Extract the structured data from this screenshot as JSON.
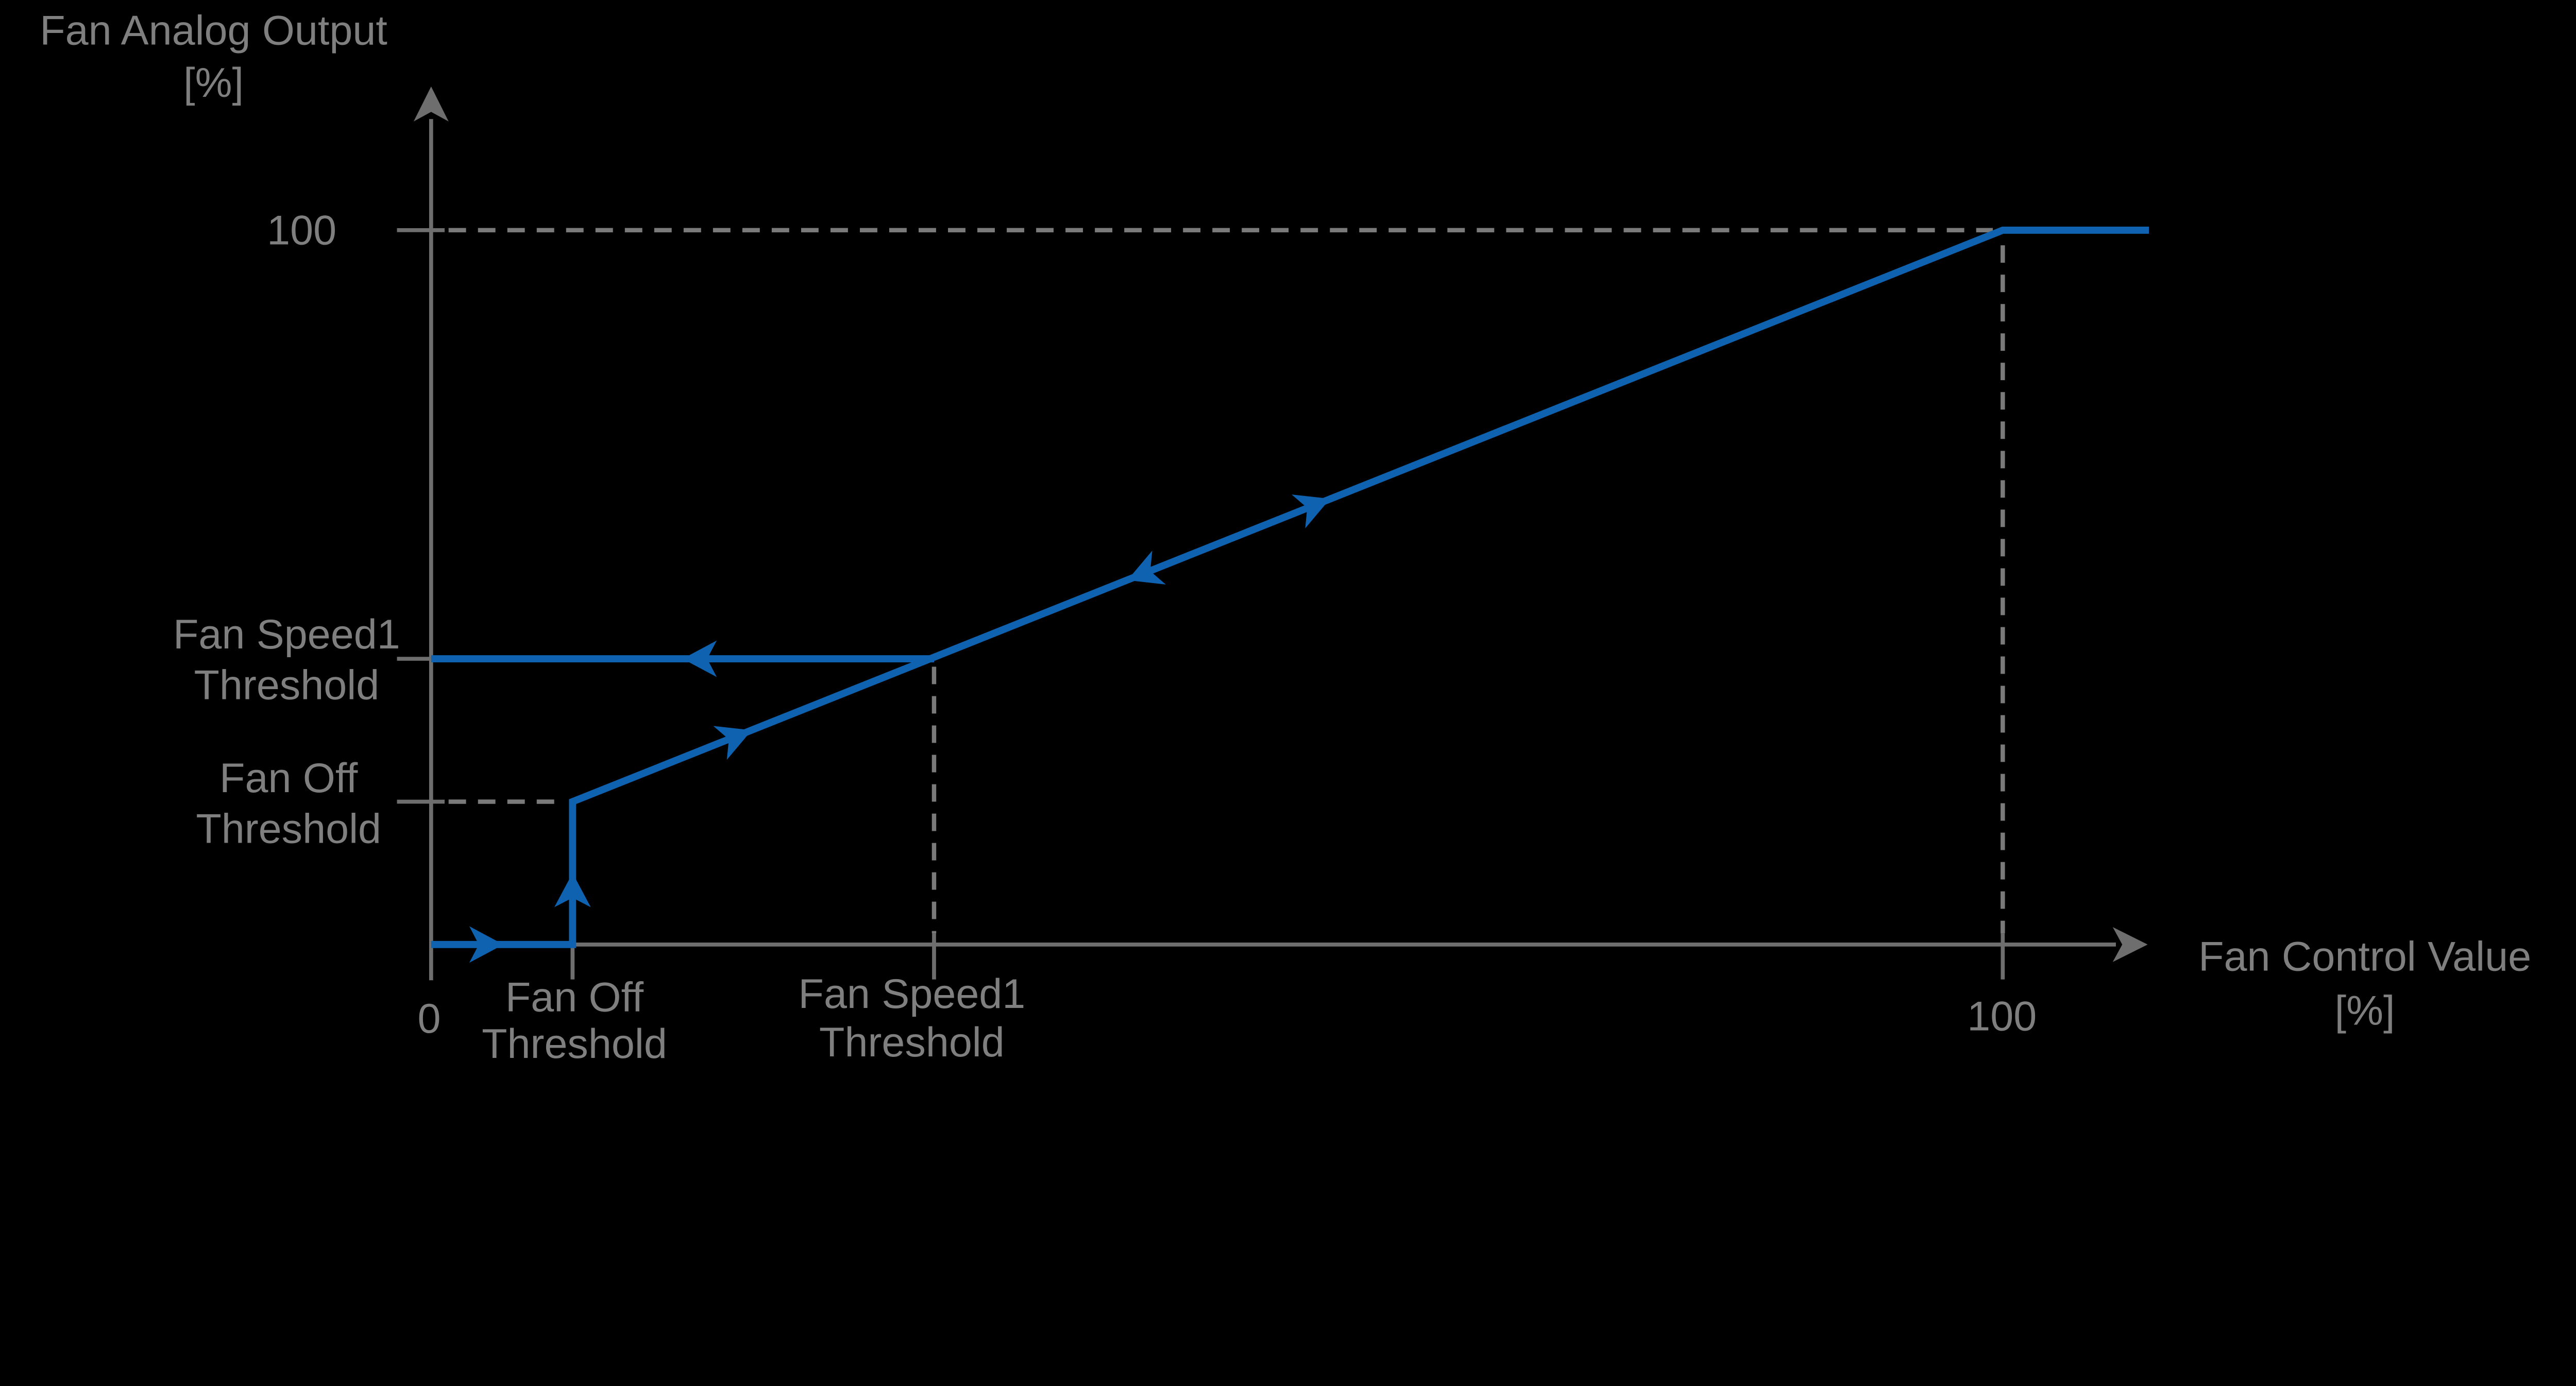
{
  "page": {
    "background_color": "#000000"
  },
  "colors": {
    "curve_blue": "#0e62b0",
    "axis_gray": "#6e6e6e",
    "dash_gray": "#7a7a7a",
    "label_gray": "#7f7f7f"
  },
  "chart_data": {
    "type": "line",
    "description": "Fan analog output versus fan control value transfer curve with hysteresis",
    "x_axis": {
      "title_lines": [
        "Fan Control Value",
        "[%]"
      ],
      "range": [
        0,
        100
      ],
      "ticks": [
        {
          "value": 0,
          "label": "0"
        },
        {
          "value": 9,
          "label_lines": [
            "Fan Off",
            "Threshold"
          ]
        },
        {
          "value": 32,
          "label_lines": [
            "Fan Speed1",
            "Threshold"
          ]
        },
        {
          "value": 100,
          "label": "100"
        }
      ]
    },
    "y_axis": {
      "title_lines": [
        "Fan Analog Output",
        "[%]"
      ],
      "range": [
        0,
        100
      ],
      "ticks": [
        {
          "value": 100,
          "label": "100"
        },
        {
          "value": 40,
          "label_lines": [
            "Fan Speed1",
            "Threshold"
          ]
        },
        {
          "value": 20,
          "label_lines": [
            "Fan Off",
            "Threshold"
          ]
        }
      ]
    },
    "thresholds": {
      "fan_off_control_value_pct": 9,
      "fan_speed1_control_value_pct": 32,
      "fan_off_output_pct": 20,
      "fan_speed1_output_pct": 40
    },
    "series": [
      {
        "name": "rising-path",
        "style": "solid",
        "points": [
          [
            0,
            0
          ],
          [
            9,
            0
          ],
          [
            9,
            20
          ],
          [
            100,
            100
          ],
          [
            109.3,
            100
          ]
        ]
      },
      {
        "name": "falling-path",
        "style": "solid",
        "points": [
          [
            32,
            40
          ],
          [
            0,
            40
          ]
        ]
      }
    ],
    "flow_arrows": [
      {
        "x": 4.6,
        "y": 0,
        "dir": "right"
      },
      {
        "x": 9,
        "y": 10,
        "dir": "up"
      },
      {
        "x": 20.4,
        "y": 30,
        "dir": "up-right"
      },
      {
        "x": 16,
        "y": 40,
        "dir": "left"
      },
      {
        "x": 44.3,
        "y": 51,
        "dir": "down-left"
      },
      {
        "x": 57.2,
        "y": 62.4,
        "dir": "up-right"
      }
    ],
    "reference_lines": [
      {
        "orientation": "horizontal",
        "at_output_pct": 100,
        "from_control_pct": 0,
        "to_control_pct": 100
      },
      {
        "orientation": "horizontal",
        "at_output_pct": 20,
        "from_control_pct": 0,
        "to_control_pct": 9
      },
      {
        "orientation": "vertical",
        "at_control_pct": 32,
        "from_output_pct": 0,
        "to_output_pct": 40
      },
      {
        "orientation": "vertical",
        "at_control_pct": 100,
        "from_output_pct": 0,
        "to_output_pct": 99
      }
    ],
    "grid": false,
    "legend": false
  }
}
